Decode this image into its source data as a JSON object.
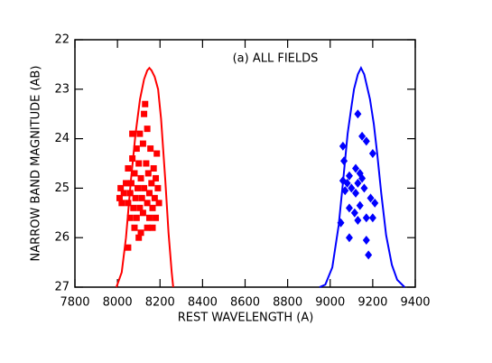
{
  "chart_data": {
    "type": "scatter",
    "annotation": "(a) ALL FIELDS",
    "x_label": "REST WAVELENGTH (A)",
    "y_label": "NARROW BAND MAGNITUDE (AB)",
    "xlim": [
      7800,
      9400
    ],
    "xticks": [
      7800,
      8000,
      8200,
      8400,
      8600,
      8800,
      9000,
      9200,
      9400
    ],
    "ylim": [
      27,
      22
    ],
    "yticks": [
      22,
      23,
      24,
      25,
      26,
      27
    ],
    "series": [
      {
        "style": "line",
        "color": "#ff0000",
        "x": [
          7995,
          8020,
          8040,
          8063,
          8085,
          8106,
          8125,
          8140,
          8150,
          8160,
          8175,
          8191,
          8205,
          8225,
          8240,
          8255,
          8262
        ],
        "values": [
          27,
          26.7,
          26.0,
          24.85,
          23.9,
          23.2,
          22.8,
          22.62,
          22.57,
          22.62,
          22.75,
          23.0,
          23.6,
          24.85,
          25.9,
          26.7,
          27
        ]
      },
      {
        "style": "line",
        "color": "#0000ff",
        "x": [
          8950,
          8977,
          9010,
          9040,
          9062,
          9082,
          9100,
          9112,
          9130,
          9145,
          9160,
          9187,
          9205,
          9221,
          9240,
          9263,
          9290,
          9315,
          9350
        ],
        "values": [
          27,
          26.95,
          26.6,
          25.75,
          24.8,
          23.9,
          23.35,
          23.0,
          22.7,
          22.57,
          22.7,
          23.2,
          23.7,
          24.3,
          25.1,
          25.95,
          26.55,
          26.85,
          27
        ]
      },
      {
        "style": "square",
        "color": "#ff0000",
        "x": [
          8130,
          8125,
          8105,
          8140,
          8090,
          8120,
          8155,
          8070,
          8100,
          8135,
          8170,
          8050,
          8080,
          8110,
          8145,
          8180,
          8040,
          8065,
          8095,
          8125,
          8160,
          8190,
          8030,
          8060,
          8085,
          8115,
          8150,
          8175,
          8020,
          8050,
          8075,
          8105,
          8140,
          8165,
          8195,
          8060,
          8090,
          8120,
          8150,
          8180,
          8080,
          8110,
          8140,
          8165,
          8100,
          8050,
          8015,
          8010,
          8185,
          8070
        ],
        "values": [
          23.3,
          23.5,
          23.9,
          23.8,
          24.2,
          24.1,
          24.2,
          24.4,
          24.5,
          24.5,
          24.6,
          24.6,
          24.7,
          24.8,
          24.7,
          24.8,
          24.9,
          24.9,
          25.0,
          25.0,
          24.9,
          25.0,
          25.1,
          25.1,
          25.2,
          25.2,
          25.1,
          25.2,
          25.3,
          25.3,
          25.4,
          25.4,
          25.3,
          25.4,
          25.3,
          25.6,
          25.6,
          25.5,
          25.6,
          25.6,
          25.8,
          25.9,
          25.8,
          25.8,
          26.0,
          26.2,
          25.0,
          25.2,
          24.3,
          23.9
        ]
      },
      {
        "style": "diamond",
        "color": "#0000ff",
        "x": [
          9130,
          9150,
          9170,
          9060,
          9200,
          9065,
          9120,
          9140,
          9090,
          9150,
          9060,
          9080,
          9130,
          9100,
          9160,
          9070,
          9120,
          9190,
          9140,
          9210,
          9090,
          9115,
          9170,
          9200,
          9050,
          9130,
          9170,
          9090,
          9180
        ],
        "values": [
          23.5,
          23.95,
          24.05,
          24.15,
          24.3,
          24.45,
          24.6,
          24.7,
          24.75,
          24.8,
          24.85,
          24.9,
          24.9,
          25.0,
          25.0,
          25.05,
          25.1,
          25.2,
          25.35,
          25.3,
          25.4,
          25.5,
          25.6,
          25.6,
          25.7,
          25.65,
          26.05,
          26.0,
          26.35
        ]
      }
    ]
  }
}
